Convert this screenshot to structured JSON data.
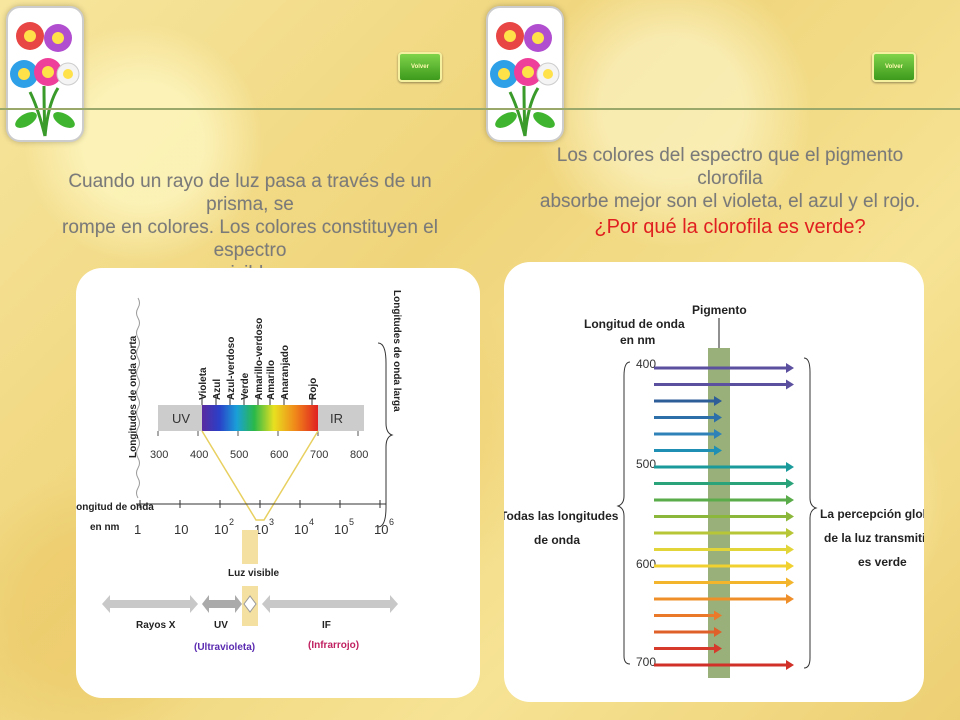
{
  "nav_button": "Volver",
  "left_slide": {
    "intro_line1": "Cuando un rayo de luz pasa a través de un prisma, se",
    "intro_line2": "rompe en colores. Los colores constituyen el espectro",
    "intro_line3": "visible.",
    "short_waves_label": "Longitudes de onda corta",
    "long_waves_label": "Longitudes de onda larga",
    "color_labels": [
      "Violeta",
      "Azul",
      "Azul-verdoso",
      "Verde",
      "Amarillo-verdoso",
      "Amarillo",
      "Anaranjado",
      "Rojo"
    ],
    "uv_label": "UV",
    "ir_label": "IR",
    "nm_ticks": [
      "300",
      "400",
      "500",
      "600",
      "700",
      "800"
    ],
    "wavelength_label_1": "Longitud de onda",
    "wavelength_label_2": "en nm",
    "log_ticks": [
      {
        "base": "1",
        "exp": ""
      },
      {
        "base": "10",
        "exp": ""
      },
      {
        "base": "10",
        "exp": "2"
      },
      {
        "base": "10",
        "exp": "3"
      },
      {
        "base": "10",
        "exp": "4"
      },
      {
        "base": "10",
        "exp": "5"
      },
      {
        "base": "10",
        "exp": "6"
      }
    ],
    "visible_light": "Luz visible",
    "xrays": "Rayos X",
    "uv_band": "UV",
    "uv_full": "(Ultravioleta)",
    "if_band": "IF",
    "if_full": "(Infrarrojo)"
  },
  "right_slide": {
    "intro_line1": "Los colores del espectro que el pigmento clorofila",
    "intro_line2": "absorbe mejor son el violeta, el azul y el rojo.",
    "question": "¿Por qué la clorofila es verde?",
    "pigment": "Pigmento",
    "wavelength_label_1": "Longitud de onda",
    "wavelength_label_2": "en nm",
    "nm_ticks": [
      "400",
      "500",
      "600",
      "700"
    ],
    "all_wavelengths_1": "Todas las longitudes",
    "all_wavelengths_2": "de onda",
    "perception_1": "La percepción global",
    "perception_2": "de la luz transmitida",
    "perception_3": "es verde"
  },
  "colors": {
    "arrows": [
      "#5b4f9f",
      "#5b4f9f",
      "#2d5e98",
      "#2d6fa8",
      "#2f82b8",
      "#1f8fb3",
      "#1a9a9b",
      "#2aa37a",
      "#5aab4a",
      "#8bb73a",
      "#b7c636",
      "#e2d53a",
      "#f0d130",
      "#f2b52c",
      "#ef8f2a",
      "#ea7a2a",
      "#e0602a",
      "#d63a2b",
      "#d03028"
    ],
    "pigment_band": "#9ab07a"
  }
}
